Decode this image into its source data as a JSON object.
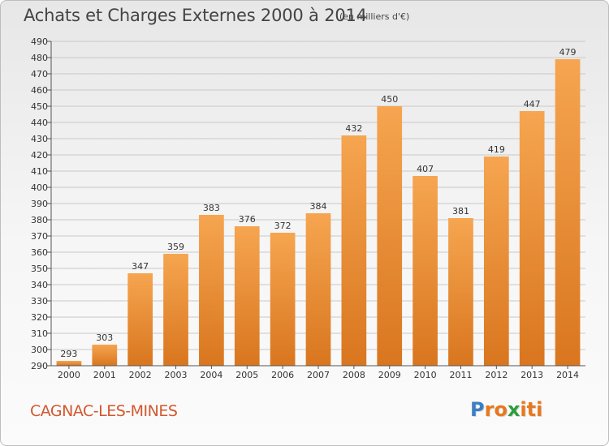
{
  "header": {
    "title": "Achats et Charges Externes 2000 à 2014",
    "unit": "(en milliers d'€)"
  },
  "footer": {
    "commune": "CAGNAC-LES-MINES",
    "logo_letters": [
      "P",
      "r",
      "o",
      "x",
      "i",
      "t",
      "i"
    ],
    "logo_colors": [
      "#3b7fc4",
      "#e8781e",
      "#e8781e",
      "#2e9e3b",
      "#e8781e",
      "#e8781e",
      "#e8781e"
    ]
  },
  "colors": {
    "bar_top": "#f6a550",
    "bar_bottom": "#d9761f",
    "grid": "#c8c8c8",
    "axis_text": "#333333"
  },
  "chart_data": {
    "type": "bar",
    "title": "Achats et Charges Externes 2000 à 2014",
    "xlabel": "",
    "ylabel": "",
    "categories": [
      "2000",
      "2001",
      "2002",
      "2003",
      "2004",
      "2005",
      "2006",
      "2007",
      "2008",
      "2009",
      "2010",
      "2011",
      "2012",
      "2013",
      "2014"
    ],
    "values": [
      293,
      303,
      347,
      359,
      383,
      376,
      372,
      384,
      432,
      450,
      407,
      381,
      419,
      447,
      479
    ],
    "ylim": [
      290,
      490
    ],
    "ytick_step": 10,
    "grid": true
  }
}
